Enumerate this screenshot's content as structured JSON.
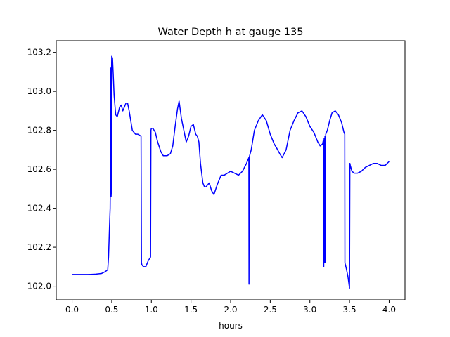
{
  "chart_data": {
    "type": "line",
    "title": "Water Depth h at gauge 135",
    "xlabel": "hours",
    "ylabel": "",
    "xlim": [
      -0.2,
      4.2
    ],
    "ylim": [
      101.93,
      103.26
    ],
    "xticks": [
      0.0,
      0.5,
      1.0,
      1.5,
      2.0,
      2.5,
      3.0,
      3.5,
      4.0
    ],
    "xtick_labels": [
      "0.0",
      "0.5",
      "1.0",
      "1.5",
      "2.0",
      "2.5",
      "3.0",
      "3.5",
      "4.0"
    ],
    "yticks": [
      102.0,
      102.2,
      102.4,
      102.6,
      102.8,
      103.0,
      103.2
    ],
    "ytick_labels": [
      "102.0",
      "102.2",
      "102.4",
      "102.6",
      "102.8",
      "103.0",
      "103.2"
    ],
    "grid": false,
    "series": [
      {
        "color": "#0000ff",
        "x": [
          0.0,
          0.1,
          0.2,
          0.3,
          0.37,
          0.42,
          0.45,
          0.46,
          0.47,
          0.48,
          0.485,
          0.49,
          0.492,
          0.495,
          0.497,
          0.5,
          0.51,
          0.52,
          0.53,
          0.55,
          0.57,
          0.6,
          0.62,
          0.64,
          0.66,
          0.68,
          0.7,
          0.72,
          0.74,
          0.76,
          0.78,
          0.8,
          0.83,
          0.87,
          0.875,
          0.88,
          0.9,
          0.93,
          0.96,
          0.99,
          0.995,
          1.0,
          1.02,
          1.05,
          1.08,
          1.12,
          1.15,
          1.2,
          1.24,
          1.27,
          1.3,
          1.33,
          1.35,
          1.38,
          1.41,
          1.44,
          1.47,
          1.5,
          1.53,
          1.56,
          1.58,
          1.6,
          1.62,
          1.65,
          1.67,
          1.69,
          1.71,
          1.73,
          1.76,
          1.79,
          1.83,
          1.88,
          1.92,
          1.96,
          2.0,
          2.05,
          2.1,
          2.15,
          2.2,
          2.23,
          2.232,
          2.235,
          2.24,
          2.26,
          2.3,
          2.35,
          2.4,
          2.45,
          2.5,
          2.55,
          2.58,
          2.62,
          2.65,
          2.7,
          2.75,
          2.8,
          2.85,
          2.9,
          2.95,
          3.0,
          3.05,
          3.1,
          3.13,
          3.16,
          3.17,
          3.175,
          3.18,
          3.185,
          3.19,
          3.195,
          3.2,
          3.22,
          3.25,
          3.28,
          3.32,
          3.36,
          3.4,
          3.43,
          3.44,
          3.442,
          3.46,
          3.48,
          3.5,
          3.505,
          3.51,
          3.53,
          3.56,
          3.6,
          3.65,
          3.7,
          3.75,
          3.8,
          3.85,
          3.9,
          3.95,
          4.0
        ],
        "y": [
          102.06,
          102.06,
          102.06,
          102.062,
          102.065,
          102.075,
          102.085,
          102.15,
          102.28,
          102.4,
          102.65,
          103.12,
          102.46,
          102.48,
          103.1,
          103.18,
          103.17,
          103.08,
          102.98,
          102.88,
          102.87,
          102.92,
          102.93,
          102.9,
          102.92,
          102.94,
          102.94,
          102.9,
          102.85,
          102.8,
          102.79,
          102.78,
          102.78,
          102.77,
          102.12,
          102.11,
          102.1,
          102.1,
          102.13,
          102.15,
          102.8,
          102.81,
          102.81,
          102.79,
          102.74,
          102.69,
          102.67,
          102.67,
          102.68,
          102.72,
          102.82,
          102.91,
          102.95,
          102.86,
          102.8,
          102.74,
          102.77,
          102.82,
          102.83,
          102.78,
          102.77,
          102.74,
          102.63,
          102.53,
          102.51,
          102.51,
          102.52,
          102.53,
          102.49,
          102.47,
          102.52,
          102.57,
          102.57,
          102.58,
          102.59,
          102.58,
          102.57,
          102.59,
          102.63,
          102.66,
          102.01,
          102.66,
          102.67,
          102.7,
          102.8,
          102.85,
          102.88,
          102.85,
          102.78,
          102.73,
          102.71,
          102.68,
          102.66,
          102.7,
          102.8,
          102.85,
          102.89,
          102.9,
          102.87,
          102.82,
          102.79,
          102.74,
          102.72,
          102.73,
          102.75,
          102.1,
          102.76,
          102.12,
          102.77,
          102.12,
          102.78,
          102.8,
          102.85,
          102.89,
          102.9,
          102.88,
          102.84,
          102.79,
          102.78,
          102.12,
          102.09,
          102.05,
          101.99,
          102.63,
          102.62,
          102.59,
          102.58,
          102.58,
          102.59,
          102.61,
          102.62,
          102.63,
          102.63,
          102.62,
          102.62,
          102.64
        ]
      }
    ]
  }
}
